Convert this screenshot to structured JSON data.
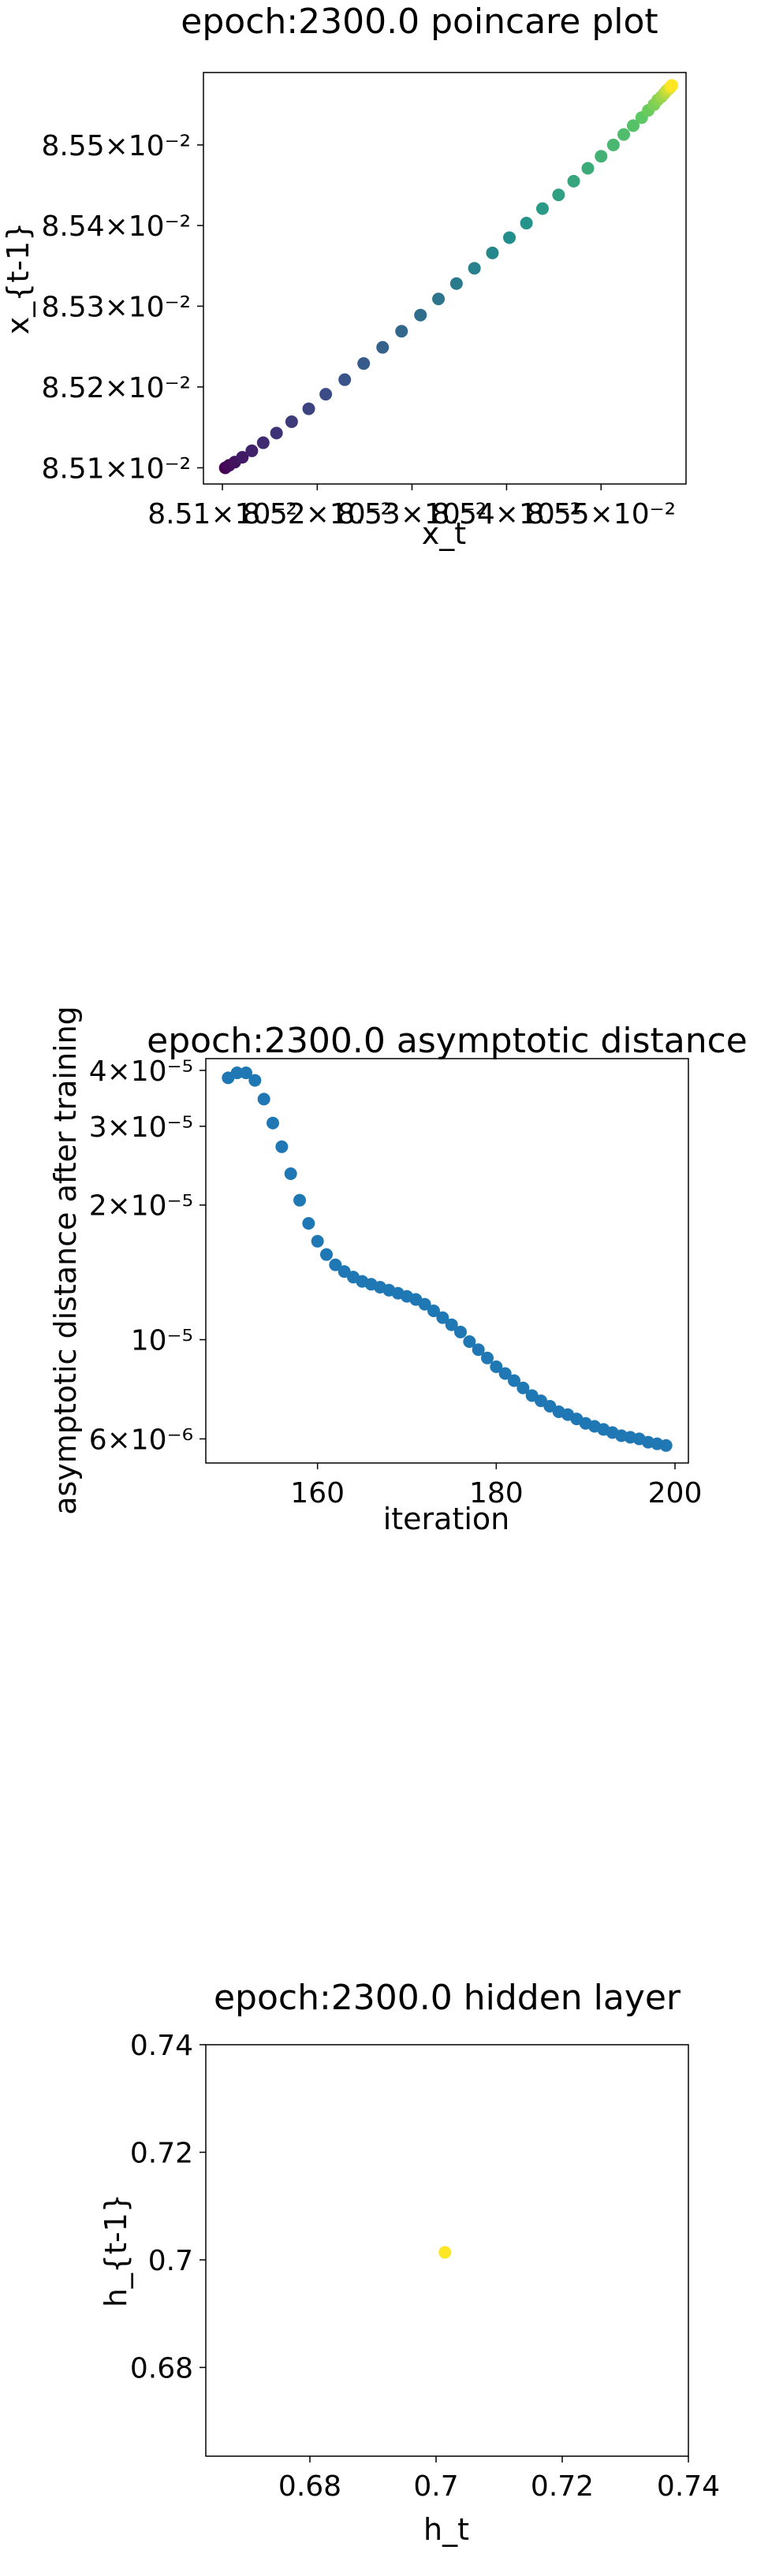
{
  "chart_data": [
    {
      "type": "scatter",
      "title": "epoch:2300.0 poincare plot",
      "xlabel": "x_t",
      "ylabel": "x_{t-1}",
      "xscale": "log",
      "yscale": "log",
      "xlim": [
        0.08508,
        0.08559
      ],
      "ylim": [
        0.08508,
        0.08559
      ],
      "xticks": [
        0.0851,
        0.0852,
        0.0853,
        0.0854,
        0.0855
      ],
      "xtick_labels": [
        "8.51×10⁻²",
        "8.52×10⁻²",
        "8.53×10⁻²",
        "8.54×10⁻²",
        "8.55×10⁻²"
      ],
      "yticks": [
        0.0851,
        0.0852,
        0.0853,
        0.0854,
        0.0855
      ],
      "ytick_labels": [
        "8.51×10⁻²",
        "8.52×10⁻²",
        "8.53×10⁻²",
        "8.54×10⁻²",
        "8.55×10⁻²"
      ],
      "colormap": "viridis",
      "x": [
        0.085103,
        0.085107,
        0.085113,
        0.085121,
        0.085131,
        0.085143,
        0.085157,
        0.085173,
        0.085191,
        0.085209,
        0.085229,
        0.085249,
        0.085269,
        0.085289,
        0.085309,
        0.085328,
        0.085347,
        0.085366,
        0.085385,
        0.085403,
        0.085421,
        0.085438,
        0.085455,
        0.085471,
        0.085486,
        0.0855,
        0.085513,
        0.085524,
        0.085534,
        0.085543,
        0.08555,
        0.085556,
        0.08556,
        0.085564,
        0.085567,
        0.085569,
        0.085571,
        0.085573,
        0.085574,
        0.085575
      ],
      "y": [
        0.0851,
        0.085103,
        0.085107,
        0.085113,
        0.085121,
        0.085131,
        0.085143,
        0.085157,
        0.085173,
        0.085191,
        0.085209,
        0.085229,
        0.085249,
        0.085269,
        0.085289,
        0.085309,
        0.085328,
        0.085347,
        0.085366,
        0.085385,
        0.085403,
        0.085421,
        0.085438,
        0.085455,
        0.085471,
        0.085486,
        0.0855,
        0.085513,
        0.085524,
        0.085534,
        0.085543,
        0.08555,
        0.085556,
        0.08556,
        0.085564,
        0.085567,
        0.085569,
        0.085571,
        0.085573,
        0.085574
      ]
    },
    {
      "type": "scatter",
      "title": "epoch:2300.0 asymptotic distance",
      "xlabel": "iteration",
      "ylabel": "asymptotic distance after training",
      "yscale": "log",
      "xlim": [
        147.5,
        201.5
      ],
      "ylim": [
        5.3e-06,
        4.25e-05
      ],
      "xticks": [
        160,
        180,
        200
      ],
      "yticks": [
        4e-05,
        3e-05,
        2e-05,
        1e-05,
        6e-06
      ],
      "ytick_labels": [
        "4×10⁻⁵",
        "3×10⁻⁵",
        "2×10⁻⁵",
        "10⁻⁵",
        "6×10⁻⁶"
      ],
      "color": "#1f77b4",
      "x": [
        150,
        151,
        152,
        153,
        154,
        155,
        156,
        157,
        158,
        159,
        160,
        161,
        162,
        163,
        164,
        165,
        166,
        167,
        168,
        169,
        170,
        171,
        172,
        173,
        174,
        175,
        176,
        177,
        178,
        179,
        180,
        181,
        182,
        183,
        184,
        185,
        186,
        187,
        188,
        189,
        190,
        191,
        192,
        193,
        194,
        195,
        196,
        197,
        198,
        199
      ],
      "y": [
        3.85e-05,
        3.95e-05,
        3.95e-05,
        3.8e-05,
        3.45e-05,
        3.05e-05,
        2.7e-05,
        2.35e-05,
        2.05e-05,
        1.82e-05,
        1.66e-05,
        1.55e-05,
        1.47e-05,
        1.42e-05,
        1.38e-05,
        1.35e-05,
        1.33e-05,
        1.31e-05,
        1.29e-05,
        1.27e-05,
        1.25e-05,
        1.23e-05,
        1.2e-05,
        1.16e-05,
        1.12e-05,
        1.08e-05,
        1.04e-05,
        9.9e-06,
        9.5e-06,
        9.1e-06,
        8.7e-06,
        8.4e-06,
        8.1e-06,
        7.8e-06,
        7.5e-06,
        7.3e-06,
        7.1e-06,
        6.9e-06,
        6.8e-06,
        6.65e-06,
        6.5e-06,
        6.4e-06,
        6.3e-06,
        6.2e-06,
        6.1e-06,
        6.05e-06,
        6e-06,
        5.9e-06,
        5.85e-06,
        5.8e-06
      ]
    },
    {
      "type": "scatter",
      "title": "epoch:2300.0 hidden layer",
      "xlabel": "h_t",
      "ylabel": "h_{t-1}",
      "xlim": [
        0.6635,
        0.74
      ],
      "ylim": [
        0.6635,
        0.74
      ],
      "xticks": [
        0.68,
        0.7,
        0.72,
        0.74
      ],
      "yticks": [
        0.68,
        0.7,
        0.72,
        0.74
      ],
      "color": "#fde725",
      "x": [
        0.7014
      ],
      "y": [
        0.7014
      ]
    }
  ]
}
